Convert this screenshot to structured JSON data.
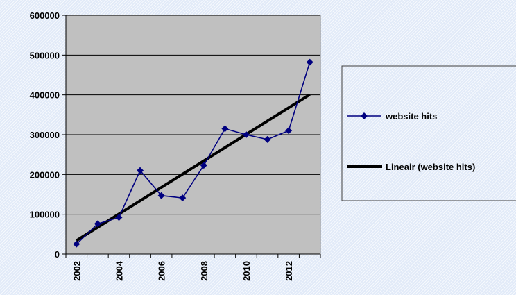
{
  "chart_data": {
    "type": "line",
    "x": [
      2002,
      2003,
      2004,
      2005,
      2006,
      2007,
      2008,
      2009,
      2010,
      2011,
      2012,
      2013
    ],
    "series": [
      {
        "name": "website hits",
        "values": [
          25000,
          76000,
          92000,
          210000,
          147000,
          141000,
          223000,
          315000,
          300000,
          288000,
          310000,
          482000
        ],
        "color": "#000080",
        "marker": "diamond"
      },
      {
        "name": "Lineair (website hits)",
        "trendline": "linear",
        "color": "#000000"
      }
    ],
    "x_tick_labels": [
      "2002",
      "2004",
      "2006",
      "2008",
      "2010",
      "2012"
    ],
    "y_tick_labels": [
      "0",
      "100000",
      "200000",
      "300000",
      "400000",
      "500000",
      "600000"
    ],
    "ylim": [
      0,
      600000
    ],
    "grid": "horizontal",
    "plot_background": "#c0c0c0",
    "legend_position": "right"
  }
}
